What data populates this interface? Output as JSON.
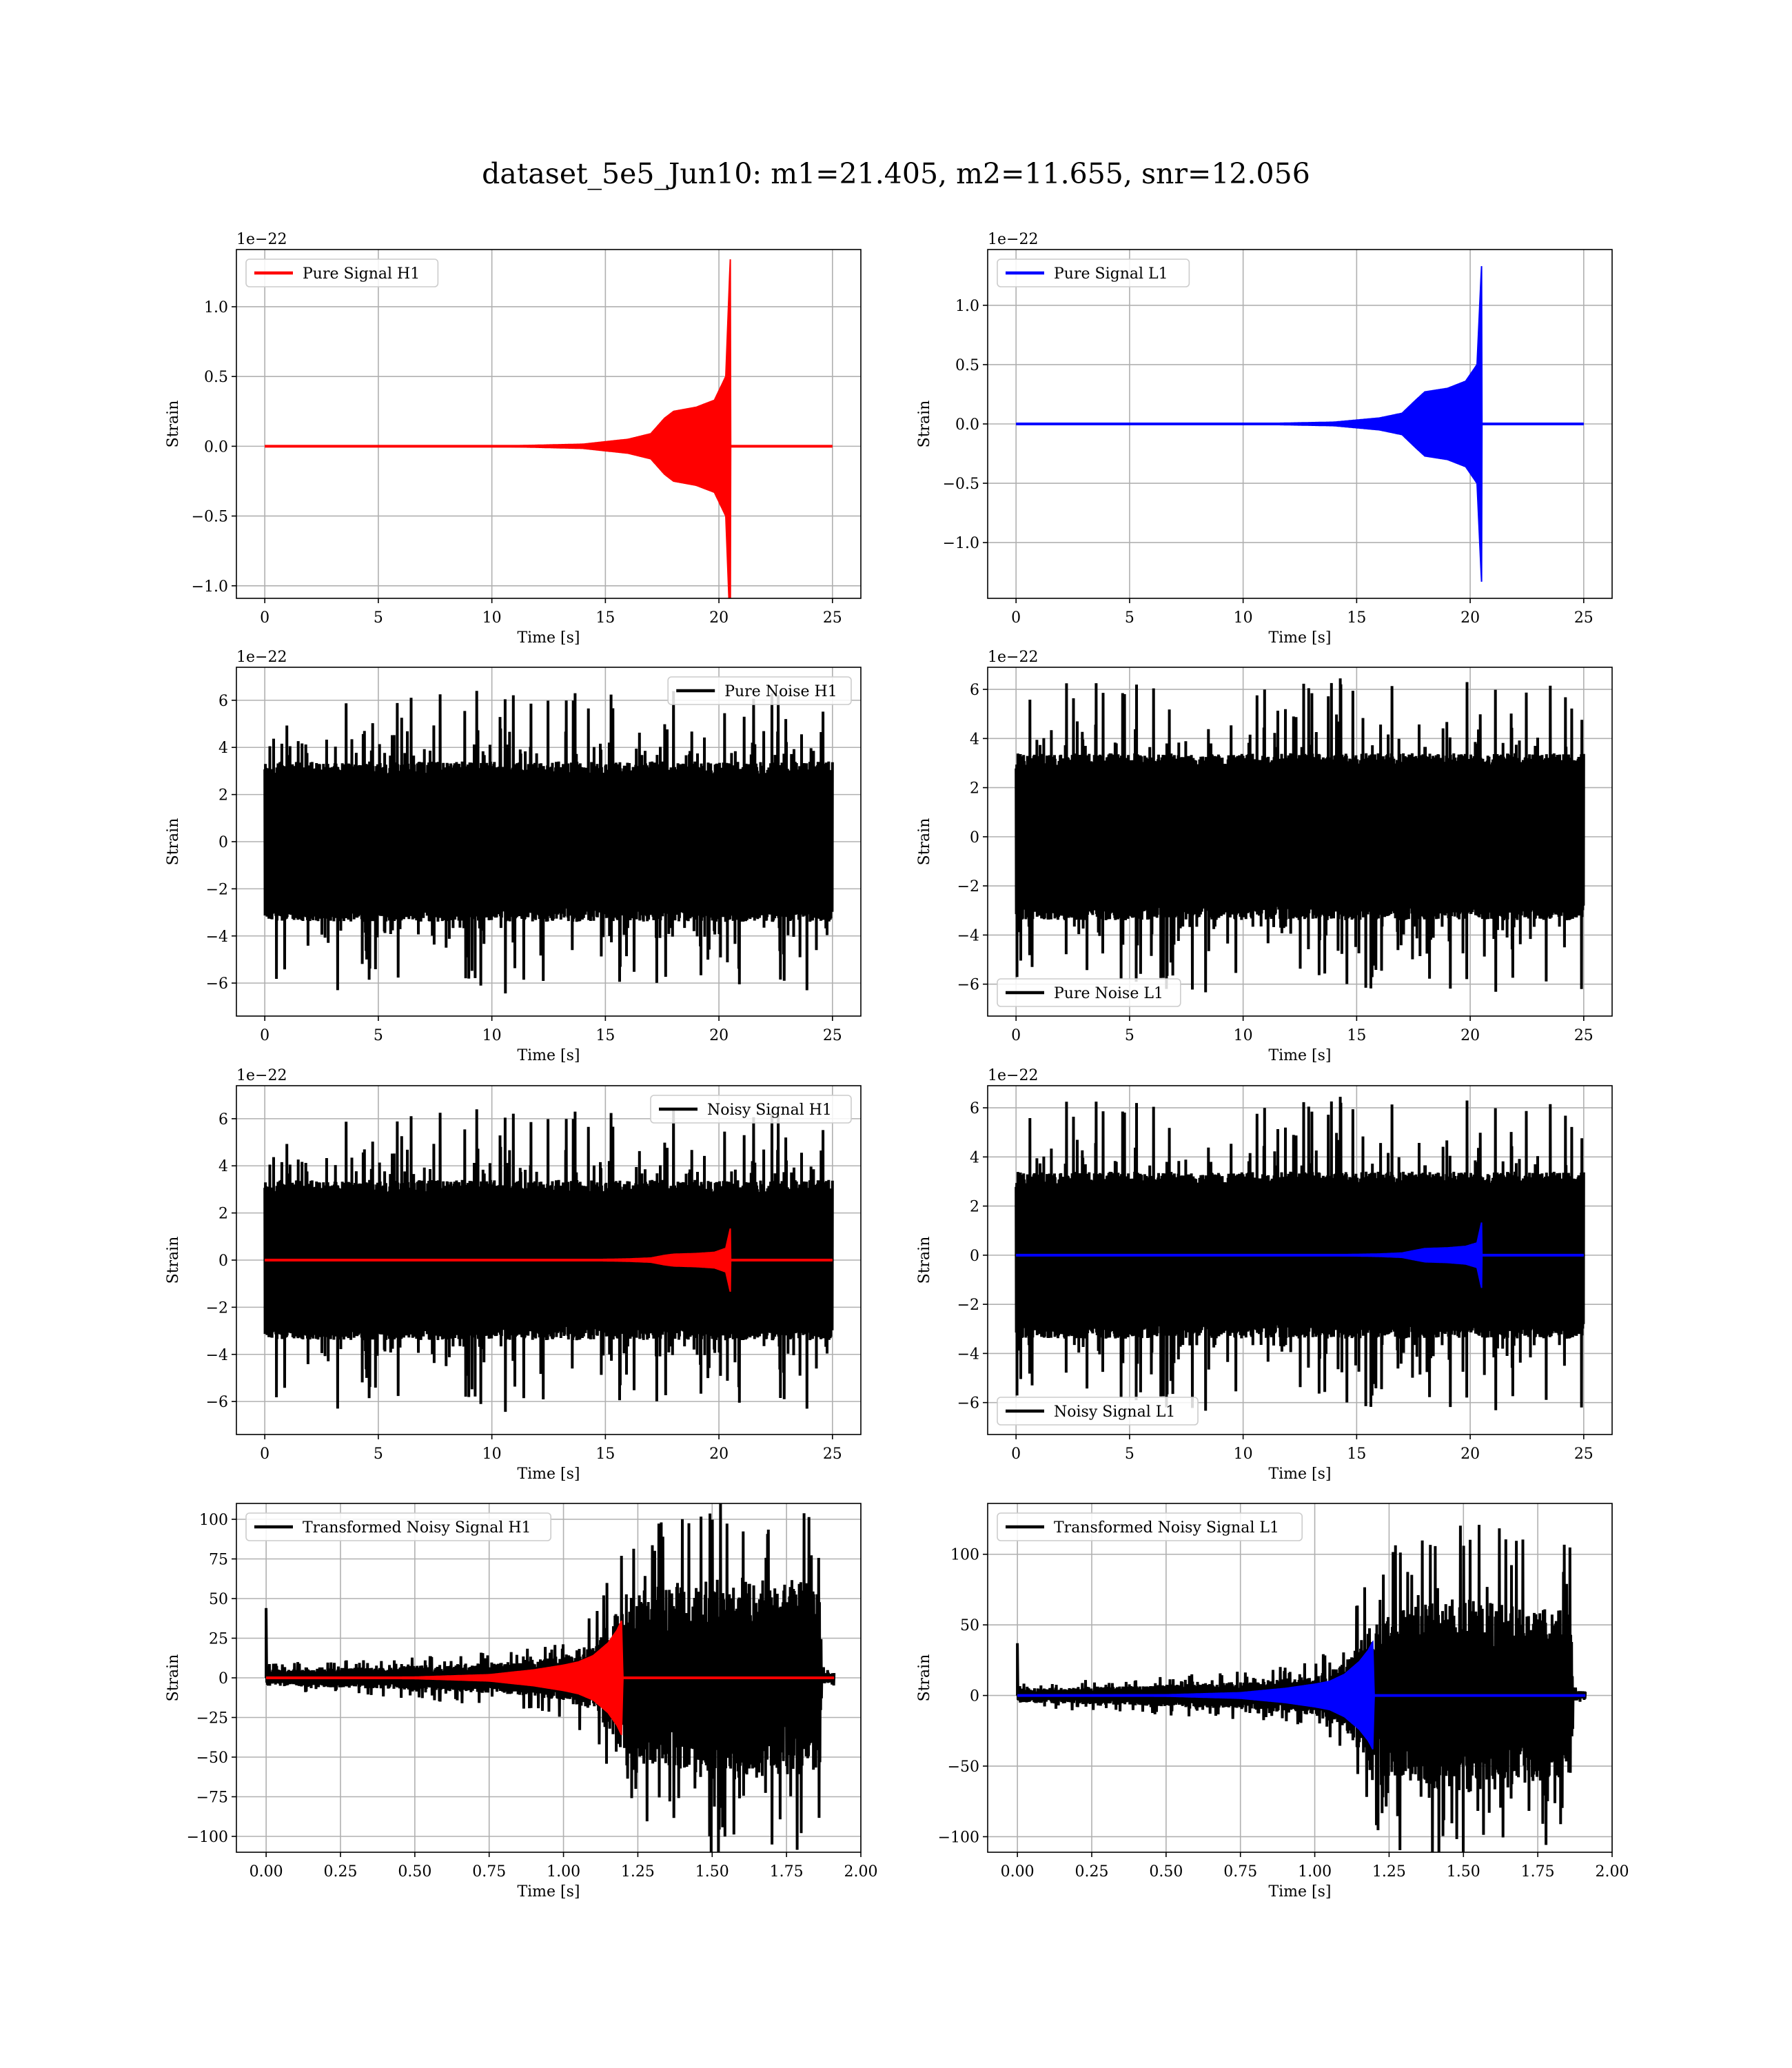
{
  "title": "dataset_5e5_Jun10: m1=21.405, m2=11.655, snr=12.056",
  "colors": {
    "red": "#ff0000",
    "blue": "#0000ff",
    "black": "#000000",
    "grid": "#b0b0b0"
  },
  "chart_data": [
    {
      "type": "line",
      "id": "pure-signal-h1",
      "xlabel": "Time [s]",
      "ylabel": "Strain",
      "offset_text": "1e−22",
      "xlim": [
        -1.25,
        26.25
      ],
      "ylim": [
        -1.09,
        1.41
      ],
      "xticks": [
        0,
        5,
        10,
        15,
        20,
        25
      ],
      "xtick_labels": [
        "0",
        "5",
        "10",
        "15",
        "20",
        "25"
      ],
      "yticks": [
        1.0,
        0.5,
        0.0,
        -0.5,
        -1.0
      ],
      "ytick_labels": [
        "1.0",
        "0.5",
        "0.0",
        "−0.5",
        "−1.0"
      ],
      "legend": "top-left",
      "grid": true,
      "series": [
        {
          "name": "Pure Signal H1",
          "kind": "chirp",
          "color": "#ff0000",
          "envelope": [
            [
              0,
              0
            ],
            [
              10,
              0
            ],
            [
              14,
              0.015
            ],
            [
              16,
              0.05
            ],
            [
              17,
              0.09
            ],
            [
              17.6,
              0.2
            ],
            [
              18,
              0.25
            ],
            [
              19,
              0.28
            ],
            [
              19.8,
              0.33
            ],
            [
              20.3,
              0.5
            ],
            [
              20.5,
              1.34
            ],
            [
              20.52,
              0
            ],
            [
              25,
              0
            ]
          ]
        }
      ]
    },
    {
      "type": "line",
      "id": "pure-signal-l1",
      "xlabel": "Time [s]",
      "ylabel": "Strain",
      "offset_text": "1e−22",
      "xlim": [
        -1.25,
        26.25
      ],
      "ylim": [
        -1.47,
        1.47
      ],
      "xticks": [
        0,
        5,
        10,
        15,
        20,
        25
      ],
      "xtick_labels": [
        "0",
        "5",
        "10",
        "15",
        "20",
        "25"
      ],
      "yticks": [
        1.0,
        0.5,
        0.0,
        -0.5,
        -1.0
      ],
      "ytick_labels": [
        "1.0",
        "0.5",
        "0.0",
        "−0.5",
        "−1.0"
      ],
      "legend": "top-left",
      "grid": true,
      "series": [
        {
          "name": "Pure Signal L1",
          "kind": "chirp",
          "color": "#0000ff",
          "envelope": [
            [
              0,
              0
            ],
            [
              10,
              0
            ],
            [
              14,
              0.015
            ],
            [
              16,
              0.05
            ],
            [
              17,
              0.09
            ],
            [
              17.6,
              0.2
            ],
            [
              18,
              0.27
            ],
            [
              19,
              0.3
            ],
            [
              19.8,
              0.36
            ],
            [
              20.3,
              0.5
            ],
            [
              20.5,
              1.33
            ],
            [
              20.52,
              0
            ],
            [
              25,
              0
            ]
          ]
        }
      ]
    },
    {
      "type": "line",
      "id": "pure-noise-h1",
      "xlabel": "Time [s]",
      "ylabel": "Strain",
      "offset_text": "1e−22",
      "xlim": [
        -1.25,
        26.25
      ],
      "ylim": [
        -7.4,
        7.4
      ],
      "xticks": [
        0,
        5,
        10,
        15,
        20,
        25
      ],
      "xtick_labels": [
        "0",
        "5",
        "10",
        "15",
        "20",
        "25"
      ],
      "yticks": [
        6,
        4,
        2,
        0,
        -2,
        -4,
        -6
      ],
      "ytick_labels": [
        "6",
        "4",
        "2",
        "0",
        "−2",
        "−4",
        "−6"
      ],
      "legend": "top-right",
      "grid": true,
      "series": [
        {
          "name": "Pure Noise H1",
          "kind": "noise",
          "color": "#000000",
          "x_range": [
            0,
            25
          ],
          "band": 3.4,
          "peak": 6.2,
          "seed": 11
        }
      ]
    },
    {
      "type": "line",
      "id": "pure-noise-l1",
      "xlabel": "Time [s]",
      "ylabel": "Strain",
      "offset_text": "1e−22",
      "xlim": [
        -1.25,
        26.25
      ],
      "ylim": [
        -7.3,
        6.9
      ],
      "xticks": [
        0,
        5,
        10,
        15,
        20,
        25
      ],
      "xtick_labels": [
        "0",
        "5",
        "10",
        "15",
        "20",
        "25"
      ],
      "yticks": [
        6,
        4,
        2,
        0,
        -2,
        -4,
        -6
      ],
      "ytick_labels": [
        "6",
        "4",
        "2",
        "0",
        "−2",
        "−4",
        "−6"
      ],
      "legend": "bottom-left",
      "grid": true,
      "series": [
        {
          "name": "Pure Noise L1",
          "kind": "noise",
          "color": "#000000",
          "x_range": [
            0,
            25
          ],
          "band": 3.4,
          "peak": 6.2,
          "seed": 23
        }
      ]
    },
    {
      "type": "line",
      "id": "noisy-signal-h1",
      "xlabel": "Time [s]",
      "ylabel": "Strain",
      "offset_text": "1e−22",
      "xlim": [
        -1.25,
        26.25
      ],
      "ylim": [
        -7.4,
        7.4
      ],
      "xticks": [
        0,
        5,
        10,
        15,
        20,
        25
      ],
      "xtick_labels": [
        "0",
        "5",
        "10",
        "15",
        "20",
        "25"
      ],
      "yticks": [
        6,
        4,
        2,
        0,
        -2,
        -4,
        -6
      ],
      "ytick_labels": [
        "6",
        "4",
        "2",
        "0",
        "−2",
        "−4",
        "−6"
      ],
      "legend": "top-right",
      "grid": true,
      "series": [
        {
          "name": "Noisy Signal H1",
          "kind": "noise",
          "color": "#000000",
          "x_range": [
            0,
            25
          ],
          "band": 3.4,
          "peak": 6.2,
          "seed": 11
        },
        {
          "kind": "chirp",
          "color": "#ff0000",
          "envelope": [
            [
              0,
              0
            ],
            [
              10,
              0
            ],
            [
              14,
              0.015
            ],
            [
              16,
              0.05
            ],
            [
              17,
              0.09
            ],
            [
              17.6,
              0.2
            ],
            [
              18,
              0.25
            ],
            [
              19,
              0.28
            ],
            [
              19.8,
              0.33
            ],
            [
              20.3,
              0.5
            ],
            [
              20.5,
              1.34
            ],
            [
              20.52,
              0
            ],
            [
              25,
              0
            ]
          ]
        }
      ]
    },
    {
      "type": "line",
      "id": "noisy-signal-l1",
      "xlabel": "Time [s]",
      "ylabel": "Strain",
      "offset_text": "1e−22",
      "xlim": [
        -1.25,
        26.25
      ],
      "ylim": [
        -7.3,
        6.9
      ],
      "xticks": [
        0,
        5,
        10,
        15,
        20,
        25
      ],
      "xtick_labels": [
        "0",
        "5",
        "10",
        "15",
        "20",
        "25"
      ],
      "yticks": [
        6,
        4,
        2,
        0,
        -2,
        -4,
        -6
      ],
      "ytick_labels": [
        "6",
        "4",
        "2",
        "0",
        "−2",
        "−4",
        "−6"
      ],
      "legend": "bottom-left",
      "grid": true,
      "series": [
        {
          "name": "Noisy Signal L1",
          "kind": "noise",
          "color": "#000000",
          "x_range": [
            0,
            25
          ],
          "band": 3.4,
          "peak": 6.2,
          "seed": 23
        },
        {
          "kind": "chirp",
          "color": "#0000ff",
          "envelope": [
            [
              0,
              0
            ],
            [
              10,
              0
            ],
            [
              14,
              0.015
            ],
            [
              16,
              0.05
            ],
            [
              17,
              0.09
            ],
            [
              17.6,
              0.2
            ],
            [
              18,
              0.27
            ],
            [
              19,
              0.3
            ],
            [
              19.8,
              0.36
            ],
            [
              20.3,
              0.5
            ],
            [
              20.5,
              1.33
            ],
            [
              20.52,
              0
            ],
            [
              25,
              0
            ]
          ]
        }
      ]
    },
    {
      "type": "line",
      "id": "transformed-noisy-signal-h1",
      "xlabel": "Time [s]",
      "ylabel": "Strain",
      "offset_text": "",
      "xlim": [
        -0.1,
        2.0
      ],
      "ylim": [
        -110,
        110
      ],
      "xticks": [
        0.0,
        0.25,
        0.5,
        0.75,
        1.0,
        1.25,
        1.5,
        1.75,
        2.0
      ],
      "xtick_labels": [
        "0.00",
        "0.25",
        "0.50",
        "0.75",
        "1.00",
        "1.25",
        "1.50",
        "1.75",
        "2.00"
      ],
      "yticks": [
        100,
        75,
        50,
        25,
        0,
        -25,
        -50,
        -75,
        -100
      ],
      "ytick_labels": [
        "100",
        "75",
        "50",
        "25",
        "0",
        "−25",
        "−50",
        "−75",
        "−100"
      ],
      "legend": "top-left",
      "grid": true,
      "series": [
        {
          "name": "Transformed Noisy Signal H1",
          "kind": "tnoise",
          "color": "#000000",
          "x_range": [
            0,
            1.91
          ],
          "spike": 44,
          "seed": 37,
          "envelope": [
            [
              0,
              5
            ],
            [
              0.4,
              7
            ],
            [
              0.8,
              10
            ],
            [
              1.0,
              14
            ],
            [
              1.1,
              22
            ],
            [
              1.17,
              40
            ],
            [
              1.25,
              55
            ],
            [
              1.5,
              65
            ],
            [
              1.75,
              62
            ],
            [
              1.86,
              60
            ],
            [
              1.87,
              4
            ],
            [
              1.91,
              3
            ]
          ]
        },
        {
          "kind": "chirp",
          "color": "#ff0000",
          "envelope": [
            [
              0,
              0
            ],
            [
              0.5,
              0.5
            ],
            [
              0.75,
              2
            ],
            [
              0.9,
              5
            ],
            [
              1.0,
              8
            ],
            [
              1.05,
              10
            ],
            [
              1.1,
              14
            ],
            [
              1.15,
              22
            ],
            [
              1.18,
              30
            ],
            [
              1.195,
              36
            ],
            [
              1.2,
              0
            ],
            [
              1.91,
              0
            ]
          ]
        }
      ]
    },
    {
      "type": "line",
      "id": "transformed-noisy-signal-l1",
      "xlabel": "Time [s]",
      "ylabel": "Strain",
      "offset_text": "",
      "xlim": [
        -0.1,
        2.0
      ],
      "ylim": [
        -111,
        136
      ],
      "xticks": [
        0.0,
        0.25,
        0.5,
        0.75,
        1.0,
        1.25,
        1.5,
        1.75,
        2.0
      ],
      "xtick_labels": [
        "0.00",
        "0.25",
        "0.50",
        "0.75",
        "1.00",
        "1.25",
        "1.50",
        "1.75",
        "2.00"
      ],
      "yticks": [
        100,
        50,
        0,
        -50,
        -100
      ],
      "ytick_labels": [
        "100",
        "50",
        "0",
        "−50",
        "−100"
      ],
      "legend": "top-left",
      "grid": true,
      "series": [
        {
          "name": "Transformed Noisy Signal L1",
          "kind": "tnoise",
          "color": "#000000",
          "x_range": [
            0,
            1.91
          ],
          "spike": 37,
          "seed": 51,
          "envelope": [
            [
              0,
              5
            ],
            [
              0.4,
              7
            ],
            [
              0.8,
              10
            ],
            [
              1.0,
              14
            ],
            [
              1.1,
              24
            ],
            [
              1.17,
              45
            ],
            [
              1.25,
              60
            ],
            [
              1.5,
              70
            ],
            [
              1.75,
              62
            ],
            [
              1.86,
              60
            ],
            [
              1.87,
              4
            ],
            [
              1.91,
              3
            ]
          ]
        },
        {
          "kind": "chirp",
          "color": "#0000ff",
          "envelope": [
            [
              0,
              0
            ],
            [
              0.5,
              0.5
            ],
            [
              0.75,
              2
            ],
            [
              0.9,
              5
            ],
            [
              1.0,
              8
            ],
            [
              1.05,
              10
            ],
            [
              1.1,
              15
            ],
            [
              1.15,
              24
            ],
            [
              1.18,
              32
            ],
            [
              1.195,
              38
            ],
            [
              1.2,
              0
            ],
            [
              1.91,
              0
            ]
          ]
        }
      ]
    }
  ]
}
